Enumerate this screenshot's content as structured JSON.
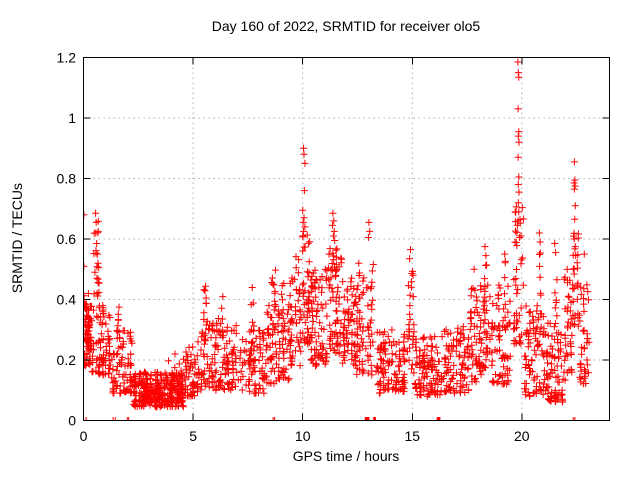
{
  "window": {
    "background": "#ffffff"
  },
  "chart_data": {
    "type": "scatter",
    "title": "Day 160 of 2022, SRMTID for receiver olo5",
    "xlabel": "GPS time / hours",
    "ylabel": "SRMTID / TECUs",
    "xlim": [
      0,
      24
    ],
    "ylim": [
      0,
      1.2
    ],
    "xticks": [
      0,
      5,
      10,
      15,
      20
    ],
    "xtick_labels": [
      "0",
      "5",
      "10",
      "15",
      "20"
    ],
    "yticks": [
      0,
      0.2,
      0.4,
      0.6,
      0.8,
      1,
      1.2
    ],
    "ytick_labels": [
      "0",
      "0.2",
      "0.4",
      "0.6",
      "0.8",
      "1",
      "1.2"
    ],
    "grid": true,
    "legend": "none",
    "marker": {
      "shape": "plus",
      "size": 7,
      "color": "#ff0000"
    },
    "axis_color": "#000000",
    "grid_color": "#b0b0b0",
    "text_color": "#000000",
    "series_name": "SRMTID",
    "density_bands": [
      {
        "x0": 0.02,
        "x1": 0.35,
        "y0": 0.18,
        "y1": 0.42,
        "n": 55,
        "cols": 4
      },
      {
        "x0": 0.05,
        "x1": 0.3,
        "y0": 0.26,
        "y1": 0.38,
        "n": 25,
        "cols": 3
      },
      {
        "x0": 0.45,
        "x1": 0.72,
        "y0": 0.38,
        "y1": 0.66,
        "n": 16,
        "cols": 2
      },
      {
        "x0": 0.35,
        "x1": 1.25,
        "y0": 0.15,
        "y1": 0.38,
        "n": 80,
        "cols": 6
      },
      {
        "x0": 1.25,
        "x1": 2.25,
        "y0": 0.09,
        "y1": 0.3,
        "n": 85,
        "cols": 6
      },
      {
        "x0": 1.55,
        "x1": 1.7,
        "y0": 0.25,
        "y1": 0.37,
        "n": 6,
        "cols": 1
      },
      {
        "x0": 2.25,
        "x1": 4.6,
        "y0": 0.045,
        "y1": 0.16,
        "n": 230,
        "cols": 10
      },
      {
        "x0": 2.6,
        "x1": 3.5,
        "y0": 0.06,
        "y1": 0.125,
        "n": 70,
        "cols": 5
      },
      {
        "x0": 3.8,
        "x1": 4.6,
        "y0": 0.06,
        "y1": 0.22,
        "n": 40,
        "cols": 4
      },
      {
        "x0": 4.6,
        "x1": 5.3,
        "y0": 0.08,
        "y1": 0.26,
        "n": 55,
        "cols": 4
      },
      {
        "x0": 5.3,
        "x1": 6.1,
        "y0": 0.1,
        "y1": 0.34,
        "n": 65,
        "cols": 5
      },
      {
        "x0": 5.45,
        "x1": 5.62,
        "y0": 0.28,
        "y1": 0.45,
        "n": 8,
        "cols": 1
      },
      {
        "x0": 6.1,
        "x1": 7.3,
        "y0": 0.1,
        "y1": 0.34,
        "n": 80,
        "cols": 6
      },
      {
        "x0": 6.2,
        "x1": 6.38,
        "y0": 0.28,
        "y1": 0.43,
        "n": 7,
        "cols": 1
      },
      {
        "x0": 7.3,
        "x1": 8.3,
        "y0": 0.09,
        "y1": 0.3,
        "n": 70,
        "cols": 5
      },
      {
        "x0": 7.62,
        "x1": 7.8,
        "y0": 0.26,
        "y1": 0.46,
        "n": 8,
        "cols": 1
      },
      {
        "x0": 8.3,
        "x1": 9.4,
        "y0": 0.12,
        "y1": 0.4,
        "n": 85,
        "cols": 6
      },
      {
        "x0": 8.55,
        "x1": 8.78,
        "y0": 0.3,
        "y1": 0.52,
        "n": 9,
        "cols": 1
      },
      {
        "x0": 9.0,
        "x1": 9.25,
        "y0": 0.25,
        "y1": 0.5,
        "n": 10,
        "cols": 1
      },
      {
        "x0": 9.4,
        "x1": 9.95,
        "y0": 0.18,
        "y1": 0.55,
        "n": 55,
        "cols": 3
      },
      {
        "x0": 9.95,
        "x1": 10.35,
        "y0": 0.25,
        "y1": 0.62,
        "n": 45,
        "cols": 2
      },
      {
        "x0": 10.35,
        "x1": 11.15,
        "y0": 0.18,
        "y1": 0.5,
        "n": 80,
        "cols": 5
      },
      {
        "x0": 11.15,
        "x1": 11.8,
        "y0": 0.22,
        "y1": 0.58,
        "n": 70,
        "cols": 4
      },
      {
        "x0": 11.8,
        "x1": 12.45,
        "y0": 0.18,
        "y1": 0.48,
        "n": 65,
        "cols": 4
      },
      {
        "x0": 12.45,
        "x1": 13.25,
        "y0": 0.15,
        "y1": 0.52,
        "n": 70,
        "cols": 4
      },
      {
        "x0": 13.3,
        "x1": 14.7,
        "y0": 0.09,
        "y1": 0.3,
        "n": 110,
        "cols": 8
      },
      {
        "x0": 14.75,
        "x1": 15.1,
        "y0": 0.15,
        "y1": 0.5,
        "n": 28,
        "cols": 2
      },
      {
        "x0": 15.1,
        "x1": 16.45,
        "y0": 0.08,
        "y1": 0.28,
        "n": 110,
        "cols": 8
      },
      {
        "x0": 16.45,
        "x1": 17.6,
        "y0": 0.09,
        "y1": 0.32,
        "n": 95,
        "cols": 7
      },
      {
        "x0": 17.6,
        "x1": 18.6,
        "y0": 0.12,
        "y1": 0.45,
        "n": 80,
        "cols": 5
      },
      {
        "x0": 18.25,
        "x1": 18.45,
        "y0": 0.35,
        "y1": 0.55,
        "n": 8,
        "cols": 1
      },
      {
        "x0": 18.6,
        "x1": 19.5,
        "y0": 0.12,
        "y1": 0.45,
        "n": 70,
        "cols": 4
      },
      {
        "x0": 19.1,
        "x1": 19.3,
        "y0": 0.3,
        "y1": 0.55,
        "n": 8,
        "cols": 1
      },
      {
        "x0": 19.6,
        "x1": 20.1,
        "y0": 0.25,
        "y1": 0.72,
        "n": 45,
        "cols": 2
      },
      {
        "x0": 20.1,
        "x1": 21.1,
        "y0": 0.08,
        "y1": 0.38,
        "n": 85,
        "cols": 6
      },
      {
        "x0": 20.72,
        "x1": 20.9,
        "y0": 0.3,
        "y1": 0.6,
        "n": 9,
        "cols": 1
      },
      {
        "x0": 21.1,
        "x1": 21.9,
        "y0": 0.06,
        "y1": 0.33,
        "n": 75,
        "cols": 5
      },
      {
        "x0": 21.45,
        "x1": 21.62,
        "y0": 0.28,
        "y1": 0.56,
        "n": 8,
        "cols": 1
      },
      {
        "x0": 21.9,
        "x1": 22.3,
        "y0": 0.12,
        "y1": 0.5,
        "n": 38,
        "cols": 3
      },
      {
        "x0": 22.3,
        "x1": 22.6,
        "y0": 0.28,
        "y1": 0.62,
        "n": 30,
        "cols": 2
      },
      {
        "x0": 22.6,
        "x1": 23.1,
        "y0": 0.12,
        "y1": 0.45,
        "n": 38,
        "cols": 3
      }
    ],
    "peak_points": [
      [
        0.02,
        0.68
      ],
      [
        0.02,
        0.51
      ],
      [
        0.55,
        0.685
      ],
      [
        0.58,
        0.655
      ],
      [
        0.56,
        0.62
      ],
      [
        0.6,
        0.585
      ],
      [
        0.63,
        0.55
      ],
      [
        0.66,
        0.52
      ],
      [
        0.52,
        0.49
      ],
      [
        0.61,
        0.47
      ],
      [
        1.62,
        0.375
      ],
      [
        10.04,
        0.9
      ],
      [
        10.06,
        0.88
      ],
      [
        10.1,
        0.85
      ],
      [
        10.08,
        0.76
      ],
      [
        10.0,
        0.695
      ],
      [
        10.06,
        0.67
      ],
      [
        10.02,
        0.655
      ],
      [
        10.1,
        0.64
      ],
      [
        10.04,
        0.625
      ],
      [
        10.0,
        0.61
      ],
      [
        11.38,
        0.685
      ],
      [
        11.42,
        0.66
      ],
      [
        11.36,
        0.645
      ],
      [
        11.44,
        0.625
      ],
      [
        11.4,
        0.61
      ],
      [
        11.46,
        0.595
      ],
      [
        13.02,
        0.655
      ],
      [
        13.06,
        0.625
      ],
      [
        13.0,
        0.605
      ],
      [
        12.56,
        0.52
      ],
      [
        14.92,
        0.565
      ],
      [
        14.88,
        0.535
      ],
      [
        17.82,
        0.5
      ],
      [
        18.32,
        0.575
      ],
      [
        18.36,
        0.545
      ],
      [
        19.22,
        0.55
      ],
      [
        19.82,
        1.185
      ],
      [
        19.84,
        1.15
      ],
      [
        19.86,
        1.135
      ],
      [
        19.83,
        1.03
      ],
      [
        19.86,
        0.955
      ],
      [
        19.84,
        0.94
      ],
      [
        19.87,
        0.92
      ],
      [
        19.83,
        0.87
      ],
      [
        19.86,
        0.805
      ],
      [
        19.84,
        0.78
      ],
      [
        19.87,
        0.755
      ],
      [
        19.84,
        0.72
      ],
      [
        19.86,
        0.69
      ],
      [
        19.83,
        0.66
      ],
      [
        20.8,
        0.62
      ],
      [
        20.84,
        0.59
      ],
      [
        21.5,
        0.585
      ],
      [
        21.54,
        0.555
      ],
      [
        22.4,
        0.855
      ],
      [
        22.42,
        0.795
      ],
      [
        22.38,
        0.785
      ],
      [
        22.43,
        0.775
      ],
      [
        22.4,
        0.765
      ],
      [
        22.44,
        0.71
      ],
      [
        22.41,
        0.665
      ],
      [
        22.39,
        0.6
      ],
      [
        22.44,
        0.575
      ],
      [
        22.46,
        0.545
      ],
      [
        22.85,
        0.55
      ]
    ],
    "zero_points": [
      0.12,
      1.35,
      1.45,
      2.0,
      2.06,
      8.65,
      8.72,
      12.86,
      12.9,
      12.94,
      12.98,
      13.02,
      13.24,
      13.28,
      13.32,
      16.14,
      16.18,
      16.22,
      16.26,
      22.35,
      22.42
    ]
  }
}
